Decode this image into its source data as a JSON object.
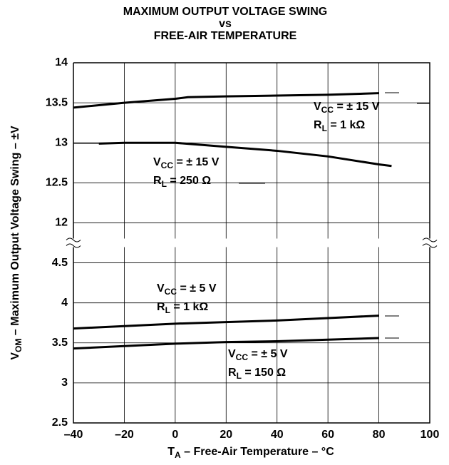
{
  "chart_data": {
    "type": "line",
    "title": [
      "MAXIMUM OUTPUT VOLTAGE SWING",
      "vs",
      "FREE-AIR TEMPERATURE"
    ],
    "x_label": [
      "T",
      "A",
      " – Free-Air Temperature – °C"
    ],
    "y_label": [
      "V",
      "OM",
      " – Maximum Output Voltage Swing – ±V"
    ],
    "xlim": [
      -40,
      100
    ],
    "xticks": [
      {
        "value": -40,
        "label": "–40"
      },
      {
        "value": -20,
        "label": "–20"
      },
      0,
      20,
      40,
      60,
      80,
      100
    ],
    "ylim": [
      2.5,
      14
    ],
    "yticks": [
      14,
      13.5,
      13,
      12.5,
      12,
      4.5,
      4,
      3.5,
      3,
      2.5
    ],
    "y_break": [
      4.5,
      12
    ],
    "grid": true,
    "series": [
      {
        "color": "#000000",
        "x": [
          -40,
          -20,
          0,
          5,
          20,
          40,
          60,
          80
        ],
        "values": [
          13.44,
          13.5,
          13.55,
          13.57,
          13.58,
          13.59,
          13.6,
          13.62
        ]
      },
      {
        "color": "#000000",
        "x": [
          -30,
          -20,
          0,
          20,
          40,
          60,
          80,
          85
        ],
        "values": [
          12.99,
          13.0,
          13.0,
          12.95,
          12.9,
          12.83,
          12.73,
          12.71
        ]
      },
      {
        "color": "#000000",
        "x": [
          -40,
          -20,
          0,
          20,
          40,
          60,
          80
        ],
        "values": [
          3.68,
          3.71,
          3.74,
          3.76,
          3.78,
          3.81,
          3.84
        ]
      },
      {
        "color": "#000000",
        "x": [
          -40,
          -20,
          0,
          20,
          40,
          60,
          80
        ],
        "values": [
          3.43,
          3.46,
          3.49,
          3.51,
          3.52,
          3.54,
          3.56
        ]
      }
    ],
    "annotations": [
      [
        [
          "V",
          "CC",
          " = ± 15 V"
        ],
        [
          "R",
          "L",
          " = 1 kΩ"
        ]
      ],
      [
        [
          "V",
          "CC",
          " = ± 15 V"
        ],
        [
          "R",
          "L",
          " = 250 Ω"
        ]
      ],
      [
        [
          "V",
          "CC",
          " = ± 5 V"
        ],
        [
          "R",
          "L",
          " = 1 kΩ"
        ]
      ],
      [
        [
          "V",
          "CC",
          " = ± 5 V"
        ],
        [
          "R",
          "L",
          " = 150 Ω"
        ]
      ]
    ]
  }
}
